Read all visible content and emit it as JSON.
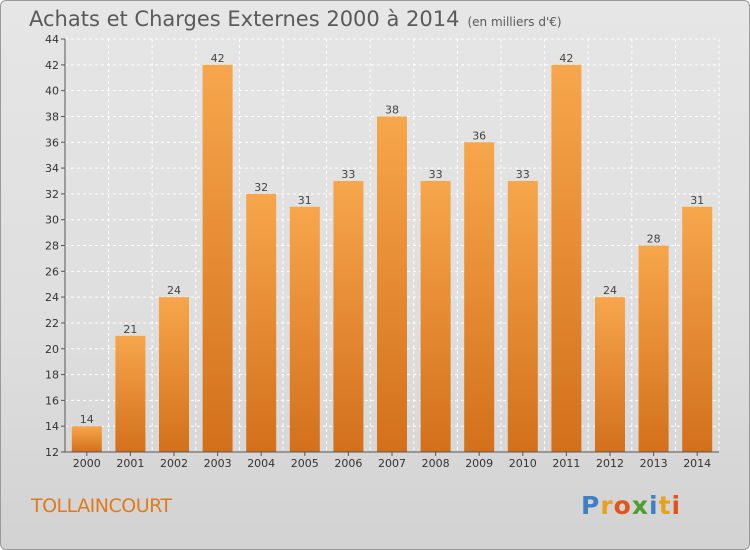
{
  "title": "Achats et Charges Externes 2000 à 2014",
  "subtitle": "(en milliers d'€)",
  "commune": "TOLLAINCOURT",
  "brand": [
    "P",
    "r",
    "o",
    "x",
    "i",
    "t",
    "i"
  ],
  "colors": {
    "bar": "#f29b3f",
    "bar_dark": "#d9741c",
    "axis": "#555555",
    "grid": "#ffffff"
  },
  "chart_data": {
    "type": "bar",
    "categories": [
      "2000",
      "2001",
      "2002",
      "2003",
      "2004",
      "2005",
      "2006",
      "2007",
      "2008",
      "2009",
      "2010",
      "2011",
      "2012",
      "2013",
      "2014"
    ],
    "values": [
      14,
      21,
      24,
      42,
      32,
      31,
      33,
      38,
      33,
      36,
      33,
      42,
      24,
      28,
      31
    ],
    "ylim": [
      12,
      44
    ],
    "yticks": [
      12,
      14,
      16,
      18,
      20,
      22,
      24,
      26,
      28,
      30,
      32,
      34,
      36,
      38,
      40,
      42,
      44
    ],
    "grid": true,
    "data_labels": true
  }
}
